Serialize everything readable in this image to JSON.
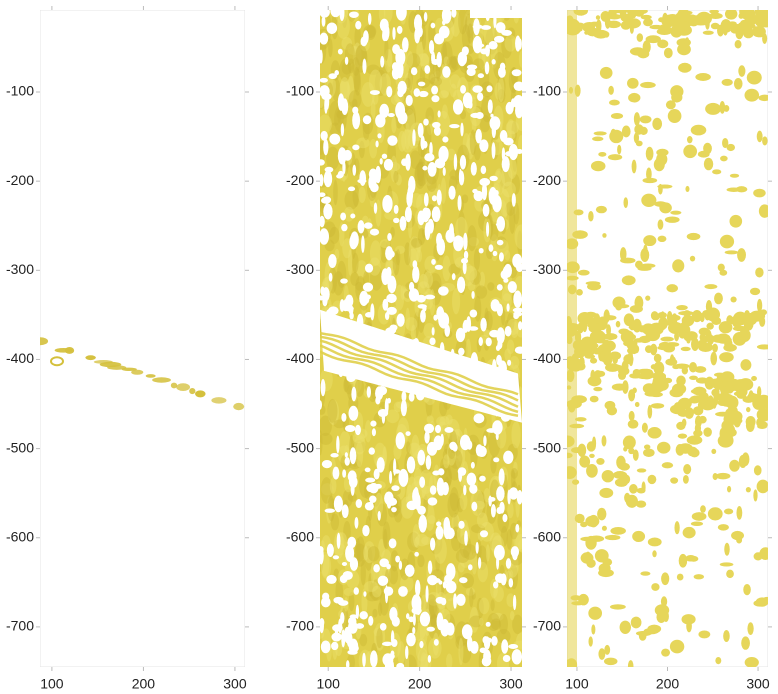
{
  "chart_data": [
    {
      "type": "heatmap",
      "xlim": [
        87,
        311
      ],
      "ylim": [
        -745,
        -8
      ],
      "xticks": [
        100,
        200,
        300
      ],
      "yticks": [
        -100,
        -200,
        -300,
        -400,
        -500,
        -600,
        -700
      ],
      "color": "#d4c03c"
    },
    {
      "type": "heatmap",
      "xlim": [
        91,
        312
      ],
      "ylim": [
        -745,
        -8
      ],
      "xticks": [
        100,
        200,
        300
      ],
      "yticks": [
        -100,
        -200,
        -300,
        -400,
        -500,
        -600,
        -700
      ],
      "color": "#e0cf4a"
    },
    {
      "type": "heatmap",
      "xlim": [
        89,
        311
      ],
      "ylim": [
        -745,
        -8
      ],
      "xticks": [
        100,
        200,
        300
      ],
      "yticks": [
        -100,
        -200,
        -300,
        -400,
        -500,
        -600,
        -700
      ],
      "color": "#e6d65a"
    }
  ]
}
